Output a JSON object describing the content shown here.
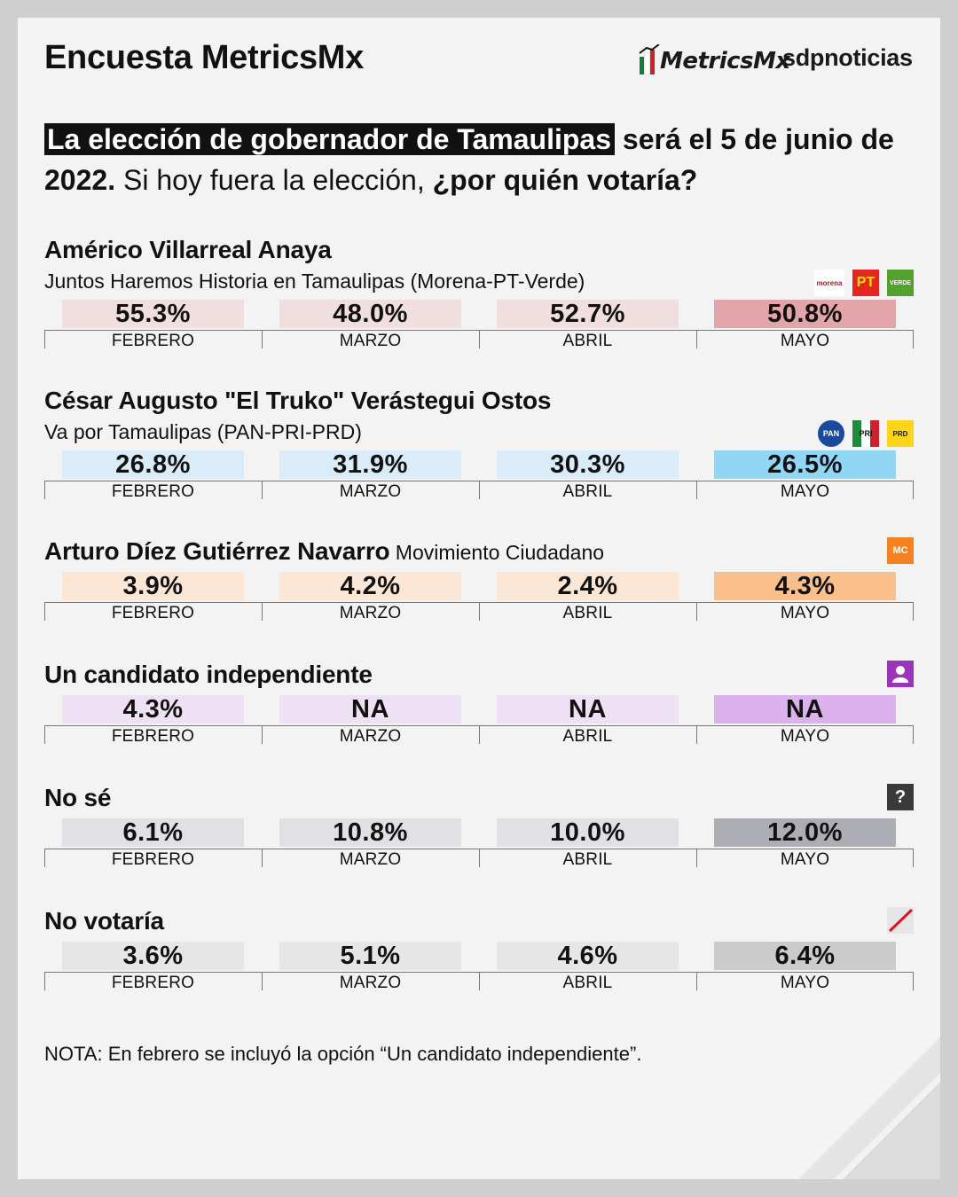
{
  "header": {
    "title": "Encuesta MetricsMx",
    "logo_metrics": "MetricsMx",
    "logo_sdp": "sdpnoticias"
  },
  "question": {
    "highlight": "La elección de gobernador de Tamaulipas",
    "part_bold1": " será el 5 de junio de 2022.",
    "part_normal": " Si hoy fuera la elección, ",
    "part_bold2": "¿por quién votaría?"
  },
  "note": "NOTA: En febrero se incluyó la opción “Un candidato independiente”.",
  "chart_data": {
    "type": "bar",
    "categories": [
      "FEBRERO",
      "MARZO",
      "ABRIL",
      "MAYO"
    ],
    "series": [
      {
        "name": "Américo Villarreal Anaya",
        "subtitle": "Juntos Haremos Historia en Tamaulipas (Morena-PT-Verde)",
        "values": [
          "55.3%",
          "48.0%",
          "52.7%",
          "50.8%"
        ],
        "color_light": "#f1dfe0",
        "color_strong": "#e3a5a9",
        "logos": [
          {
            "name": "morena-logo-icon",
            "label": "morena",
            "bg": "#ffffff",
            "fg": "#b0171f"
          },
          {
            "name": "pt-logo-icon",
            "label": "PT",
            "bg": "#e52521",
            "fg": "#ffe000"
          },
          {
            "name": "verde-logo-icon",
            "label": "VERDE",
            "bg": "#53a22d",
            "fg": "#ffffff"
          }
        ]
      },
      {
        "name": "César Augusto \"El Truko\" Verástegui Ostos",
        "subtitle": "Va por Tamaulipas (PAN-PRI-PRD)",
        "values": [
          "26.8%",
          "31.9%",
          "30.3%",
          "26.5%"
        ],
        "color_light": "#d9ecf8",
        "color_strong": "#8fd7f5",
        "logos": [
          {
            "name": "pan-logo-icon",
            "label": "PAN",
            "bg": "#1b4a9c",
            "fg": "#ffffff"
          },
          {
            "name": "pri-logo-icon",
            "label": "PRI",
            "bg": "#ffffff",
            "fg": "#d0202e"
          },
          {
            "name": "prd-logo-icon",
            "label": "PRD",
            "bg": "#ffd51a",
            "fg": "#1a1a1a"
          }
        ]
      },
      {
        "name": "Arturo Díez Gutiérrez Navarro",
        "subtitle": "Movimiento Ciudadano",
        "values": [
          "3.9%",
          "4.2%",
          "2.4%",
          "4.3%"
        ],
        "color_light": "#fce6d6",
        "color_strong": "#fbbf8b",
        "logos": [
          {
            "name": "movimiento-ciudadano-logo-icon",
            "label": "MC",
            "bg": "#f58220",
            "fg": "#ffffff"
          }
        ]
      },
      {
        "name": "Un candidato independiente",
        "values": [
          "4.3%",
          "NA",
          "NA",
          "NA"
        ],
        "color_light": "#efe1f4",
        "color_strong": "#dcb2ec",
        "logos": [
          {
            "name": "person-icon",
            "label": "",
            "bg": "#9b35b8",
            "fg": "#ffffff"
          }
        ]
      },
      {
        "name": "No sé",
        "values": [
          "6.1%",
          "10.8%",
          "10.0%",
          "12.0%"
        ],
        "color_light": "#e1e1e5",
        "color_strong": "#adadb5",
        "logos": [
          {
            "name": "question-mark-icon",
            "label": "?",
            "bg": "#3a3a3a",
            "fg": "#ffffff"
          }
        ]
      },
      {
        "name": "No votaría",
        "values": [
          "3.6%",
          "5.1%",
          "4.6%",
          "6.4%"
        ],
        "color_light": "#e6e6e6",
        "color_strong": "#cbcbcb",
        "logos": [
          {
            "name": "crossed-out-icon",
            "label": "",
            "bg": "#e6e6e6",
            "fg": "#e0121e"
          }
        ]
      }
    ]
  }
}
